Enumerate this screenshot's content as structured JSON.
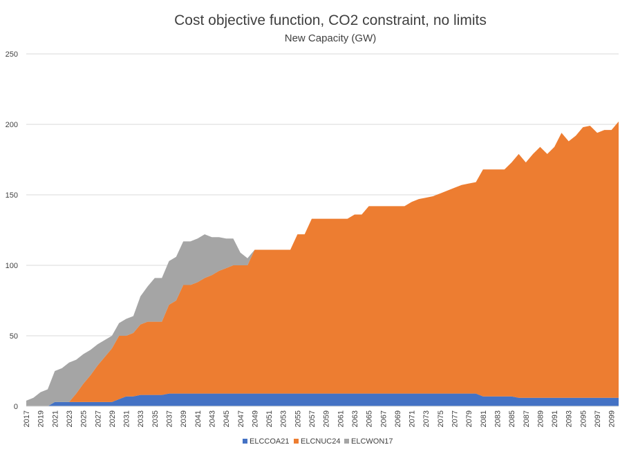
{
  "chart_data": {
    "type": "area",
    "stacked": true,
    "title": "Cost objective function, CO2 constraint, no limits",
    "subtitle": "New Capacity (GW)",
    "xlabel": "",
    "ylabel": "",
    "ylim": [
      0,
      250
    ],
    "y_ticks": [
      0,
      50,
      100,
      150,
      200,
      250
    ],
    "grid": true,
    "legend_position": "bottom",
    "x_tick_labels": [
      "2017",
      "2019",
      "2021",
      "2023",
      "2025",
      "2027",
      "2029",
      "2031",
      "2033",
      "2035",
      "2037",
      "2039",
      "2041",
      "2043",
      "2045",
      "2047",
      "2049",
      "2051",
      "2053",
      "2055",
      "2057",
      "2059",
      "2061",
      "2063",
      "2065",
      "2067",
      "2069",
      "2071",
      "2073",
      "2075",
      "2077",
      "2079",
      "2081",
      "2083",
      "2085",
      "2087",
      "2089",
      "2091",
      "2093",
      "2095",
      "2097",
      "2099"
    ],
    "x": [
      2017,
      2018,
      2019,
      2020,
      2021,
      2022,
      2023,
      2024,
      2025,
      2026,
      2027,
      2028,
      2029,
      2030,
      2031,
      2032,
      2033,
      2034,
      2035,
      2036,
      2037,
      2038,
      2039,
      2040,
      2041,
      2042,
      2043,
      2044,
      2045,
      2046,
      2047,
      2048,
      2049,
      2050,
      2051,
      2052,
      2053,
      2054,
      2055,
      2056,
      2057,
      2058,
      2059,
      2060,
      2061,
      2062,
      2063,
      2064,
      2065,
      2066,
      2067,
      2068,
      2069,
      2070,
      2071,
      2072,
      2073,
      2074,
      2075,
      2076,
      2077,
      2078,
      2079,
      2080,
      2081,
      2082,
      2083,
      2084,
      2085,
      2086,
      2087,
      2088,
      2089,
      2090,
      2091,
      2092,
      2093,
      2094,
      2095,
      2096,
      2097,
      2098,
      2099,
      2100
    ],
    "series": [
      {
        "name": "ELCCOA21",
        "color": "#4472c4",
        "values": [
          0,
          0,
          0,
          0,
          3,
          3,
          3,
          3,
          3,
          3,
          3,
          3,
          3,
          5,
          7,
          7,
          8,
          8,
          8,
          8,
          9,
          9,
          9,
          9,
          9,
          9,
          9,
          9,
          9,
          9,
          9,
          9,
          9,
          9,
          9,
          9,
          9,
          9,
          9,
          9,
          9,
          9,
          9,
          9,
          9,
          9,
          9,
          9,
          9,
          9,
          9,
          9,
          9,
          9,
          9,
          9,
          9,
          9,
          9,
          9,
          9,
          9,
          9,
          9,
          7,
          7,
          7,
          7,
          7,
          6,
          6,
          6,
          6,
          6,
          6,
          6,
          6,
          6,
          6,
          6,
          6,
          6,
          6,
          6
        ]
      },
      {
        "name": "ELCNUC24",
        "color": "#ed7d31",
        "values": [
          0,
          0,
          0,
          0,
          0,
          0,
          0,
          6,
          13,
          19,
          26,
          32,
          38,
          45,
          43,
          45,
          50,
          52,
          52,
          52,
          63,
          66,
          77,
          77,
          79,
          82,
          84,
          87,
          89,
          91,
          91,
          91,
          102,
          102,
          102,
          102,
          102,
          102,
          113,
          113,
          124,
          124,
          124,
          124,
          124,
          124,
          127,
          127,
          133,
          133,
          133,
          133,
          133,
          133,
          136,
          138,
          139,
          140,
          142,
          144,
          146,
          148,
          149,
          150,
          161,
          161,
          161,
          161,
          166,
          173,
          167,
          173,
          178,
          173,
          178,
          188,
          182,
          186,
          192,
          193,
          188,
          190,
          190,
          196
        ]
      },
      {
        "name": "ELCWON17",
        "color": "#a5a5a5",
        "values": [
          4,
          6,
          10,
          12,
          22,
          24,
          28,
          24,
          21,
          18,
          15,
          12,
          9,
          9,
          12,
          12,
          20,
          25,
          31,
          31,
          31,
          31,
          31,
          31,
          31,
          31,
          27,
          24,
          21,
          19,
          9,
          5,
          0,
          0,
          0,
          0,
          0,
          0,
          0,
          0,
          0,
          0,
          0,
          0,
          0,
          0,
          0,
          0,
          0,
          0,
          0,
          0,
          0,
          0,
          0,
          0,
          0,
          0,
          0,
          0,
          0,
          0,
          0,
          0,
          0,
          0,
          0,
          0,
          0,
          0,
          0,
          0,
          0,
          0,
          0,
          0,
          0,
          0,
          0,
          0,
          0,
          0,
          0,
          0
        ]
      }
    ]
  }
}
